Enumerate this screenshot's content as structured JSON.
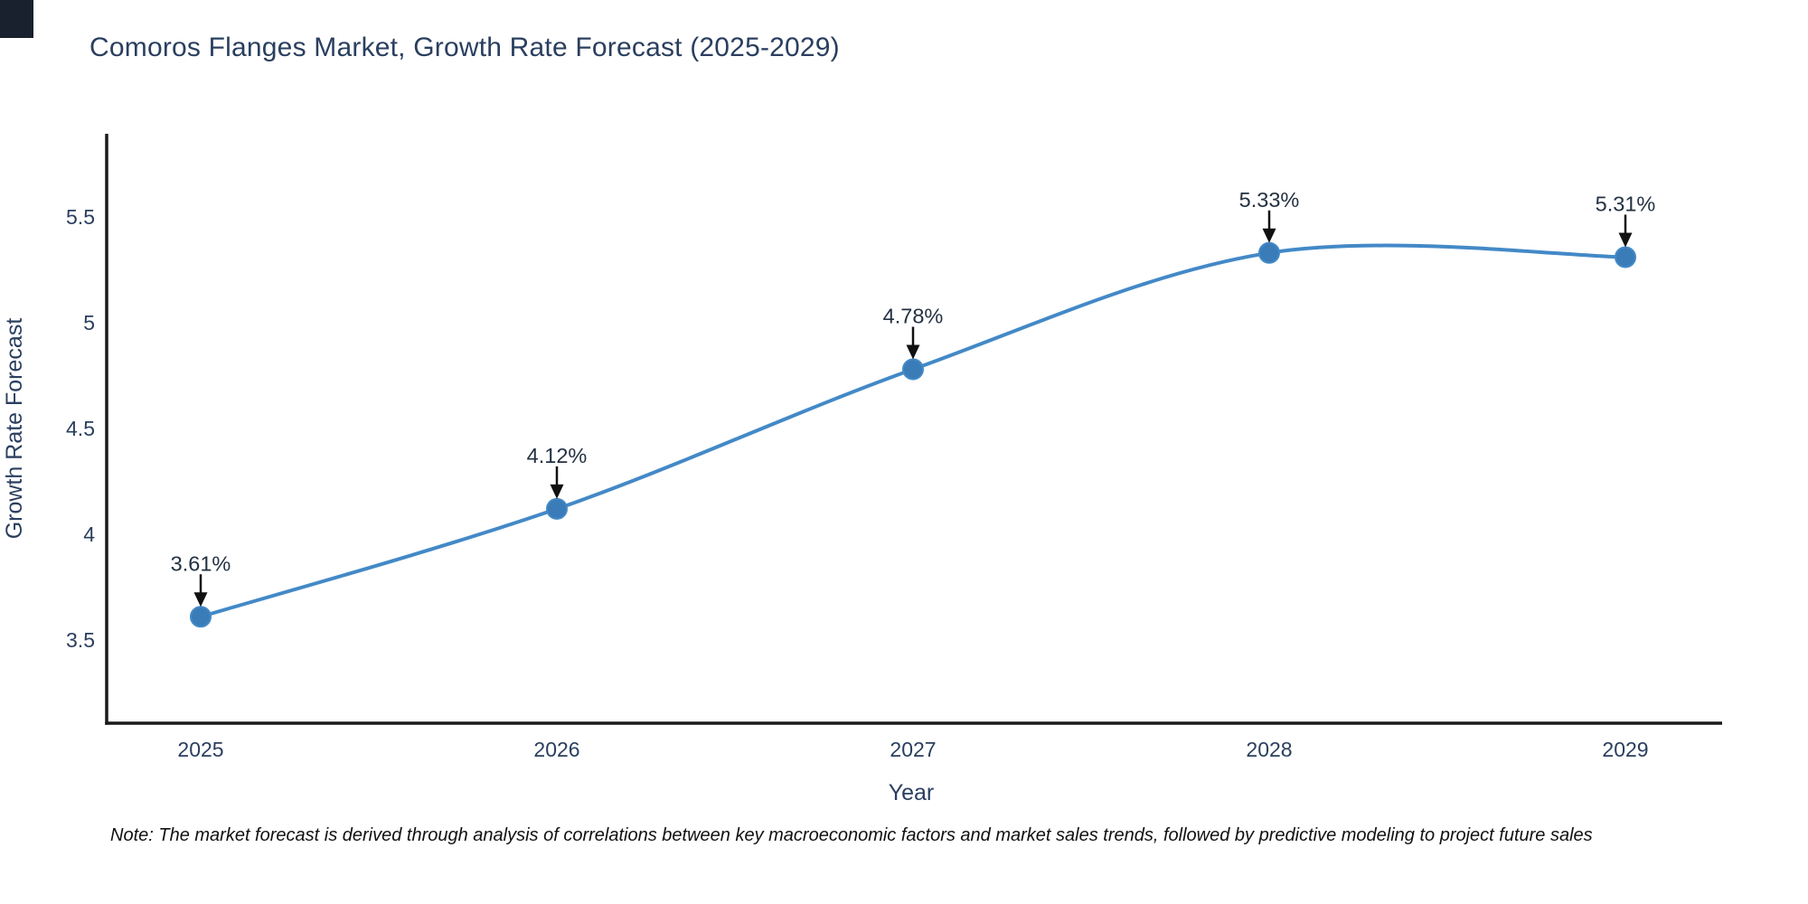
{
  "note": "Note: The market forecast is derived through analysis of correlations between key macroeconomic factors and market sales trends, followed by predictive modeling to project future sales",
  "chart_data": {
    "type": "line",
    "title": "Comoros Flanges Market, Growth Rate Forecast (2025-2029)",
    "x": [
      2025,
      2026,
      2027,
      2028,
      2029
    ],
    "values": [
      3.61,
      4.12,
      4.78,
      5.33,
      5.31
    ],
    "point_labels": [
      "3.61%",
      "4.12%",
      "4.78%",
      "5.33%",
      "5.31%"
    ],
    "xlabel": "Year",
    "ylabel": "Growth Rate Forecast",
    "ytick_labels": [
      "3.5",
      "4",
      "4.5",
      "5",
      "5.5"
    ],
    "ytick_values": [
      3.5,
      4.0,
      4.5,
      5.0,
      5.5
    ],
    "ylim": [
      3.11,
      5.89
    ],
    "xlim": [
      2024.74,
      2029.27
    ],
    "line_shape": "spline",
    "grid": false,
    "legend": false,
    "annotations": "black down-arrows from each value label to its data point",
    "colors": {
      "line": "#4389c7",
      "marker": "#3a7cb8",
      "axis": "#1a1a1a",
      "tick_text": "#2a3f5f",
      "annotation_text": "#233142",
      "arrow": "#111111",
      "title_text": "#2a3f5f",
      "corner_mark": "#19202e"
    }
  }
}
